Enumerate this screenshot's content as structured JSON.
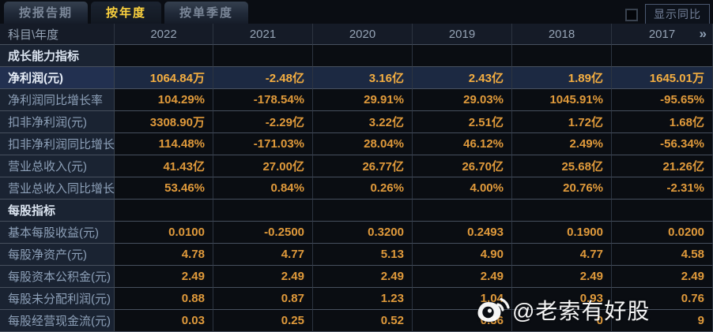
{
  "tabs": [
    {
      "label": "按报告期",
      "active": false
    },
    {
      "label": "按年度",
      "active": true
    },
    {
      "label": "按单季度",
      "active": false
    }
  ],
  "controls": {
    "show_yoy_label": "显示同比",
    "checkbox_checked": false
  },
  "table": {
    "corner_header": "科目\\年度",
    "years": [
      "2022",
      "2021",
      "2020",
      "2019",
      "2018",
      "2017"
    ],
    "more_years_icon": "»",
    "rows": [
      {
        "type": "section",
        "label": "成长能力指标",
        "values": [
          "",
          "",
          "",
          "",
          "",
          ""
        ]
      },
      {
        "type": "highlight",
        "label": "净利润(元)",
        "values": [
          "1064.84万",
          "-2.48亿",
          "3.16亿",
          "2.43亿",
          "1.89亿",
          "1645.01万"
        ]
      },
      {
        "type": "data",
        "label": "净利润同比增长率",
        "values": [
          "104.29%",
          "-178.54%",
          "29.91%",
          "29.03%",
          "1045.91%",
          "-95.65%"
        ]
      },
      {
        "type": "data",
        "label": "扣非净利润(元)",
        "values": [
          "3308.90万",
          "-2.29亿",
          "3.22亿",
          "2.51亿",
          "1.72亿",
          "1.68亿"
        ]
      },
      {
        "type": "data",
        "label": "扣非净利润同比增长率",
        "values": [
          "114.48%",
          "-171.03%",
          "28.04%",
          "46.12%",
          "2.49%",
          "-56.34%"
        ]
      },
      {
        "type": "data",
        "label": "营业总收入(元)",
        "values": [
          "41.43亿",
          "27.00亿",
          "26.77亿",
          "26.70亿",
          "25.68亿",
          "21.26亿"
        ]
      },
      {
        "type": "data",
        "label": "营业总收入同比增长率",
        "values": [
          "53.46%",
          "0.84%",
          "0.26%",
          "4.00%",
          "20.76%",
          "-2.31%"
        ]
      },
      {
        "type": "section",
        "label": "每股指标",
        "values": [
          "",
          "",
          "",
          "",
          "",
          ""
        ]
      },
      {
        "type": "data",
        "label": "基本每股收益(元)",
        "values": [
          "0.0100",
          "-0.2500",
          "0.3200",
          "0.2493",
          "0.1900",
          "0.0200"
        ]
      },
      {
        "type": "data",
        "label": "每股净资产(元)",
        "values": [
          "4.78",
          "4.77",
          "5.13",
          "4.90",
          "4.77",
          "4.58"
        ]
      },
      {
        "type": "data",
        "label": "每股资本公积金(元)",
        "values": [
          "2.49",
          "2.49",
          "2.49",
          "2.49",
          "2.49",
          "2.49"
        ]
      },
      {
        "type": "data",
        "label": "每股未分配利润(元)",
        "values": [
          "0.88",
          "0.87",
          "1.23",
          "1.04",
          "0.93",
          "0.76"
        ]
      },
      {
        "type": "data",
        "label": "每股经营现金流(元)",
        "values": [
          "0.03",
          "0.25",
          "0.52",
          "0.36",
          "0",
          "9"
        ]
      }
    ]
  },
  "watermark": {
    "text": "@老索有好股",
    "icon": "weibo-logo"
  },
  "colors": {
    "accent_gold": "#fdd23e",
    "value_orange": "#e09a3b",
    "highlight_value_orange": "#f4ae41",
    "highlight_row_bg": "#1c2942",
    "label_column_bg": "#1a2332",
    "section_text": "#dbe4f0",
    "label_text": "#8da0b8",
    "header_text": "#95a3b5",
    "grid_line": "#47505e",
    "page_bg": "#0a0d13"
  }
}
